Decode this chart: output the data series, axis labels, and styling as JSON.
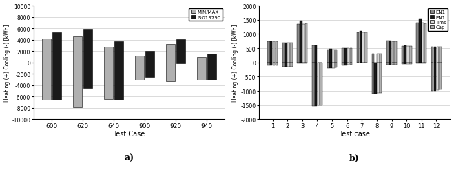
{
  "chart_a": {
    "categories": [
      "600",
      "620",
      "640",
      "900",
      "920",
      "940"
    ],
    "minmax_pos": [
      4200,
      4600,
      2700,
      1200,
      3200,
      900
    ],
    "minmax_neg": [
      -6500,
      -7900,
      -6400,
      -3100,
      -3300,
      -3000
    ],
    "iso_pos": [
      5300,
      5900,
      3700,
      2000,
      4100,
      1500
    ],
    "iso_neg": [
      -6500,
      -4500,
      -6500,
      -2600,
      -200,
      -3100
    ],
    "color_minmax": "#b0b0b0",
    "color_iso": "#1a1a1a",
    "ylabel": "Heating (+) Cooling (-) [kWh]",
    "xlabel": "Test Case",
    "ylim": [
      -10000,
      10000
    ],
    "yticks": [
      -10000,
      -8000,
      -6000,
      -4000,
      -2000,
      0,
      2000,
      4000,
      6000,
      8000,
      10000
    ],
    "legend_labels": [
      "MIN/MAX",
      "ISO13790"
    ]
  },
  "chart_b": {
    "categories": [
      "1",
      "2",
      "3",
      "4",
      "5",
      "6",
      "7",
      "8",
      "9",
      "10",
      "11",
      "12"
    ],
    "en1a_pos": [
      750,
      700,
      1350,
      600,
      460,
      490,
      1060,
      320,
      760,
      580,
      1390,
      540
    ],
    "en1b_pos": [
      750,
      700,
      1460,
      600,
      470,
      500,
      1100,
      0,
      760,
      590,
      1550,
      550
    ],
    "tms_pos": [
      750,
      700,
      1350,
      0,
      460,
      490,
      1060,
      320,
      750,
      570,
      1390,
      540
    ],
    "cap_pos": [
      750,
      690,
      1370,
      0,
      460,
      490,
      1060,
      320,
      750,
      570,
      1380,
      540
    ],
    "en1a_neg": [
      -100,
      -150,
      -30,
      -1530,
      -200,
      -100,
      0,
      -1100,
      -90,
      -60,
      -30,
      -1000
    ],
    "en1b_neg": [
      -100,
      -150,
      -30,
      -1530,
      -200,
      -100,
      0,
      -1100,
      -90,
      -60,
      -30,
      -1000
    ],
    "tms_neg": [
      -100,
      -150,
      -20,
      -1510,
      -190,
      -90,
      0,
      -1080,
      -80,
      -50,
      -20,
      -970
    ],
    "cap_neg": [
      -100,
      -150,
      -20,
      -1500,
      -180,
      -90,
      0,
      -1060,
      -80,
      -50,
      -20,
      -960
    ],
    "color_en1a": "#888888",
    "color_en1b": "#1a1a1a",
    "color_tms": "#d8d8d8",
    "color_cap": "#b0b0b0",
    "ylabel": "Heating (+) Cooling (-) [kWh]",
    "xlabel": "Test case",
    "ylim": [
      -2000,
      2000
    ],
    "yticks": [
      -2000,
      -1500,
      -1000,
      -500,
      0,
      500,
      1000,
      1500,
      2000
    ],
    "legend_labels": [
      "EN1",
      "EN1",
      "Tms",
      "Cap"
    ]
  }
}
